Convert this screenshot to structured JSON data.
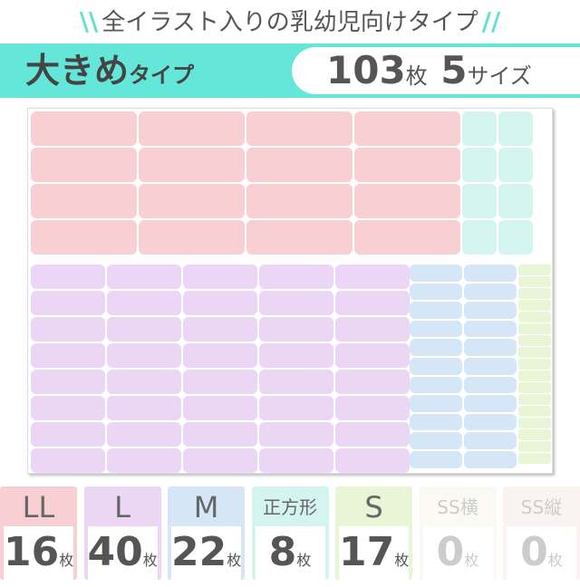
{
  "header": {
    "subtitle": "全イラスト入りの乳幼児向けタイプ",
    "type_main": "大きめ",
    "type_suffix": "タイプ",
    "total_count": "103",
    "count_unit": "枚",
    "size_count": "5",
    "size_unit": "サイズ"
  },
  "colors": {
    "accent": "#64e6d8",
    "LL": "#f8d0d3",
    "L": "#ecd6f5",
    "M": "#d5e6f7",
    "square": "#d4f4ef",
    "S": "#e8f5d7",
    "SS": "#fbf9f3",
    "SSv": "#fbf3f1"
  },
  "legend": [
    {
      "name": "LL",
      "count": "16",
      "unit": "枚",
      "color": "#f8d0d3",
      "active": true
    },
    {
      "name": "L",
      "count": "40",
      "unit": "枚",
      "color": "#ecd6f5",
      "active": true
    },
    {
      "name": "M",
      "count": "22",
      "unit": "枚",
      "color": "#d5e6f7",
      "active": true
    },
    {
      "name": "正方形",
      "count": "8",
      "unit": "枚",
      "color": "#d4f4ef",
      "active": true
    },
    {
      "name": "S",
      "count": "17",
      "unit": "枚",
      "color": "#e8f5d7",
      "active": true
    },
    {
      "name": "SS横",
      "count": "0",
      "unit": "枚",
      "color": "#fbf9f3",
      "active": false
    },
    {
      "name": "SS縦",
      "count": "0",
      "unit": "枚",
      "color": "#fbf3f1",
      "active": false
    }
  ]
}
